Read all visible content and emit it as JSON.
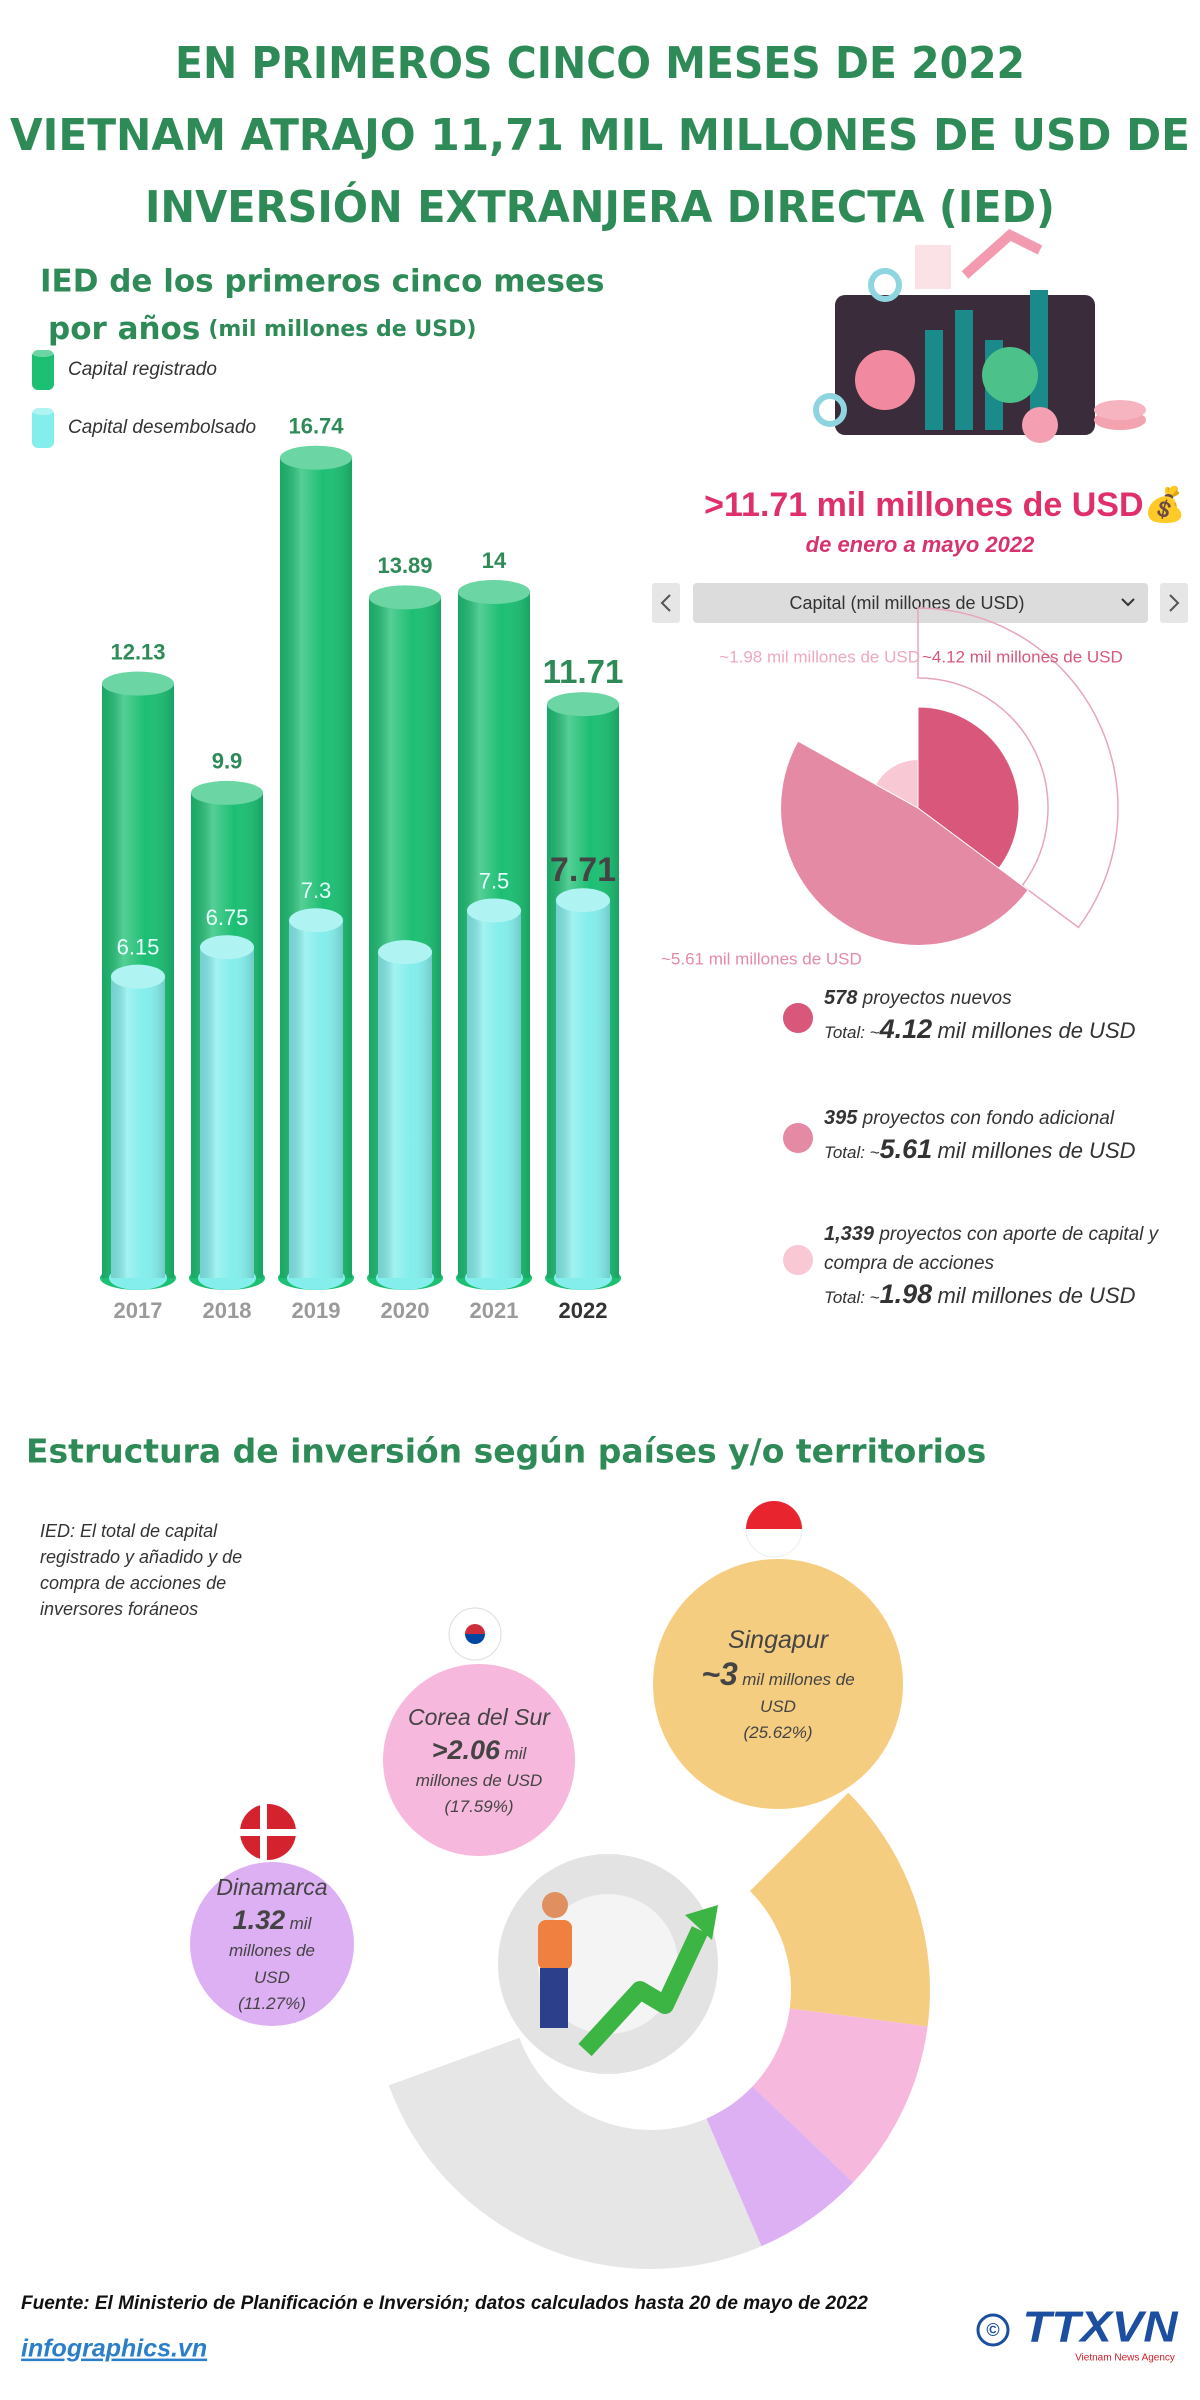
{
  "header": {
    "title_lines": [
      "EN PRIMEROS CINCO MESES DE 2022",
      "VIETNAM ATRAJO 11,71 MIL MILLONES DE USD DE",
      "INVERSIÓN EXTRANJERA DIRECTA (IED)"
    ]
  },
  "chart_data": [
    {
      "type": "bar",
      "title": "IED de los primeros cinco meses",
      "subtitle": "por años",
      "unit": "(mil millones de USD)",
      "categories": [
        "2017",
        "2018",
        "2019",
        "2020",
        "2021",
        "2022"
      ],
      "series": [
        {
          "name": "Capital registrado",
          "color": "#1dbf73",
          "values": [
            12.13,
            9.9,
            16.74,
            13.89,
            14,
            11.71
          ]
        },
        {
          "name": "Capital desembolsado",
          "color": "#84eeec",
          "values": [
            6.15,
            6.75,
            7.3,
            6.65,
            7.5,
            7.71
          ],
          "value_labels": [
            "6.15",
            "6.75",
            "7.3",
            null,
            "7.5",
            "7.71"
          ]
        }
      ]
    },
    {
      "type": "pie",
      "title": ">11.71 mil millones de USD💰",
      "subtitle": "de enero a mayo 2022",
      "selector": "Capital (mil millones de USD)",
      "values": [
        4.12,
        5.61,
        1.98
      ],
      "value_labels": [
        "~4.12 mil millones de USD",
        "~5.61 mil millones de USD",
        "~1.98 mil millones de USD"
      ],
      "colors": [
        "#d9577b",
        "#e58aa5",
        "#f8c8d5"
      ],
      "legend": [
        {
          "count": 578,
          "text": "proyectos nuevos",
          "total_prefix": "Total: ~",
          "total": 4.12,
          "total_unit": "mil millones de USD"
        },
        {
          "count": 395,
          "text": "proyectos con fondo adicional",
          "total_prefix": "Total: ~",
          "total": 5.61,
          "total_unit": "mil millones de USD"
        },
        {
          "count": 1339,
          "count_label": "1,339",
          "text": "proyectos con aporte de capital y compra de acciones",
          "total_prefix": "Total: ~",
          "total": 1.98,
          "total_unit": "mil millones de USD"
        }
      ]
    },
    {
      "type": "donut",
      "title": "Estructura de inversión según países y/o territorios",
      "note": "IED: El total de capital registrado y añadido y de compra de acciones de inversores foráneos",
      "categories": [
        "Singapur",
        "Corea del Sur",
        "Dinamarca",
        null
      ],
      "values": [
        25.62,
        17.59,
        11.27,
        45.52
      ],
      "value_labels": [
        "(25.62%)",
        "(17.59%)",
        "(11.27%)",
        null
      ],
      "amounts": [
        3,
        2.06,
        1.32,
        null
      ],
      "amount_labels": [
        "~3",
        ">2.06",
        "1.32",
        null
      ],
      "unit": "mil millones de USD",
      "colors": [
        "#f5cd80",
        "#f6b8dc",
        "#ddb0f3",
        "#e6e6e6"
      ]
    }
  ],
  "footer": {
    "source": "Fuente: El Ministerio de Planificación e Inversión; datos calculados hasta 20 de mayo de 2022",
    "site": "infographics.vn",
    "copyright": "©",
    "logo": "TTXVN",
    "logo_sub": "Vietnam News Agency"
  }
}
